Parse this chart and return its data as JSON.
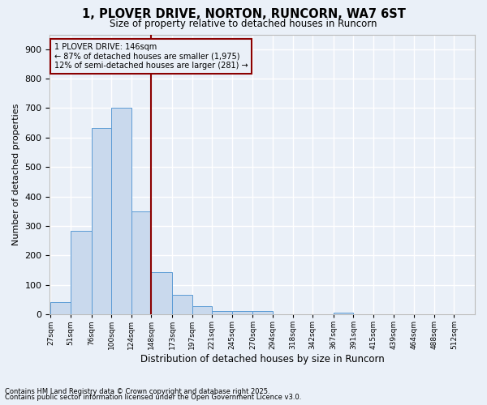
{
  "title": "1, PLOVER DRIVE, NORTON, RUNCORN, WA7 6ST",
  "subtitle": "Size of property relative to detached houses in Runcorn",
  "xlabel": "Distribution of detached houses by size in Runcorn",
  "ylabel": "Number of detached properties",
  "footnote1": "Contains HM Land Registry data © Crown copyright and database right 2025.",
  "footnote2": "Contains public sector information licensed under the Open Government Licence v3.0.",
  "annotation_title": "1 PLOVER DRIVE: 146sqm",
  "annotation_line1": "← 87% of detached houses are smaller (1,975)",
  "annotation_line2": "12% of semi-detached houses are larger (281) →",
  "bar_categories": [
    "27sqm",
    "51sqm",
    "76sqm",
    "100sqm",
    "124sqm",
    "148sqm",
    "173sqm",
    "197sqm",
    "221sqm",
    "245sqm",
    "270sqm",
    "294sqm",
    "318sqm",
    "342sqm",
    "367sqm",
    "391sqm",
    "415sqm",
    "439sqm",
    "464sqm",
    "488sqm",
    "512sqm"
  ],
  "bar_values": [
    42,
    283,
    632,
    700,
    350,
    143,
    65,
    28,
    12,
    10,
    10,
    0,
    0,
    0,
    5,
    0,
    0,
    0,
    0,
    0,
    0
  ],
  "bar_color": "#c9d9ed",
  "bar_edge_color": "#5b9bd5",
  "vline_color": "#8b0000",
  "background_color": "#eaf0f8",
  "grid_color": "#ffffff",
  "ylim": [
    0,
    950
  ],
  "yticks": [
    0,
    100,
    200,
    300,
    400,
    500,
    600,
    700,
    800,
    900
  ],
  "bin_edges": [
    27,
    51,
    76,
    100,
    124,
    148,
    173,
    197,
    221,
    245,
    270,
    294,
    318,
    342,
    367,
    391,
    415,
    439,
    464,
    488,
    512,
    536
  ]
}
